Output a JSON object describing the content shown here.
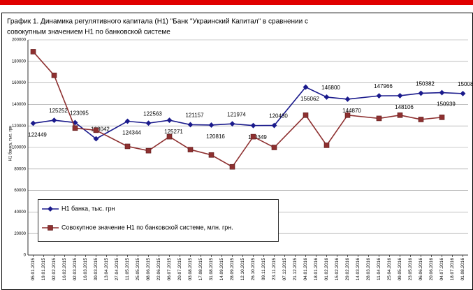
{
  "chart_data": {
    "type": "line",
    "title": [
      "График 1. Динамика регулятивного капитала (Н1) \"Банк \"Украинский Капитал\" в сравнении с",
      "совокупным значением Н1 по банковской системе"
    ],
    "y_label": "Н1 банка, тыс. грн",
    "categories": [
      "05.01.2015",
      "19.01.2015",
      "02.02.2015",
      "16.02.2015",
      "02.03.2015",
      "16.03.2015",
      "30.03.2015",
      "13.04.2015",
      "27.04.2015",
      "11.05.2015",
      "25.05.2015",
      "08.06.2015",
      "22.06.2015",
      "06.07.2015",
      "20.07.2015",
      "03.08.2015",
      "17.08.2015",
      "31.08.2015",
      "14.09.2015",
      "28.09.2015",
      "12.10.2015",
      "26.10.2015",
      "09.11.2015",
      "23.11.2015",
      "07.12.2015",
      "21.12.2015",
      "04.01.2016",
      "18.01.2016",
      "01.02.2016",
      "15.02.2016",
      "29.02.2016",
      "14.03.2016",
      "28.03.2016",
      "11.04.2016",
      "25.04.2016",
      "09.05.2016",
      "23.05.2016",
      "06.06.2016",
      "20.06.2016",
      "04.07.2016",
      "18.07.2016",
      "01.08.2016"
    ],
    "ylim": [
      0,
      200000
    ],
    "yticks": [
      0,
      20000,
      40000,
      60000,
      80000,
      100000,
      120000,
      140000,
      160000,
      180000,
      200000
    ],
    "grid": true,
    "series": [
      {
        "name": "Н1 банка, тыс. грн",
        "color": "#1a1a8c",
        "marker": "diamond",
        "data_labels": true,
        "x": [
          "05.01.2015",
          "02.02.2015",
          "02.03.2015",
          "30.03.2015",
          "11.05.2015",
          "08.06.2015",
          "06.07.2015",
          "03.08.2015",
          "31.08.2015",
          "28.09.2015",
          "26.10.2015",
          "23.11.2015",
          "04.01.2016",
          "01.02.2016",
          "29.02.2016",
          "11.04.2016",
          "09.05.2016",
          "06.06.2016",
          "04.07.2016",
          "01.08.2016"
        ],
        "values": [
          122449,
          125252,
          123095,
          108042,
          124344,
          122563,
          125271,
          121157,
          120816,
          121974,
          120349,
          120430,
          156062,
          146800,
          144870,
          147966,
          148106,
          150382,
          150939,
          150086
        ]
      },
      {
        "name": "Совокупное значение Н1 по банковской системе, млн. грн.",
        "color": "#8e3030",
        "marker": "square",
        "data_labels": false,
        "x": [
          "05.01.2015",
          "02.02.2015",
          "02.03.2015",
          "30.03.2015",
          "11.05.2015",
          "08.06.2015",
          "06.07.2015",
          "03.08.2015",
          "31.08.2015",
          "28.09.2015",
          "26.10.2015",
          "23.11.2015",
          "04.01.2016",
          "01.02.2016",
          "29.02.2016",
          "11.04.2016",
          "09.05.2016",
          "06.06.2016",
          "04.07.2016"
        ],
        "values": [
          189000,
          167000,
          118000,
          116000,
          101000,
          97000,
          110000,
          98000,
          93000,
          82000,
          110000,
          100000,
          130000,
          102000,
          130000,
          127000,
          130000,
          126000,
          128000
        ]
      }
    ]
  }
}
